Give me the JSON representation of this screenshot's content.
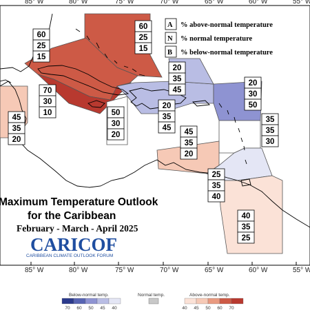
{
  "title_line1": "Maximum Temperature Outlook",
  "title_line2": "for the Caribbean",
  "period": "February - March - April 2025",
  "logo": {
    "text": "CARICOF",
    "subtitle": "CARIBBEAN CLIMATE OUTLOOK FORUM"
  },
  "key": [
    {
      "letter": "A",
      "label": "% above-normal temperature"
    },
    {
      "letter": "N",
      "label": "% normal temperature"
    },
    {
      "letter": "B",
      "label": "% below-normal temperature"
    }
  ],
  "longitudes": [
    "85° W",
    "80° W",
    "75° W",
    "70° W",
    "65° W",
    "60° W",
    "55° W"
  ],
  "regions": [
    {
      "name": "bahamas",
      "above": "60",
      "normal": "25",
      "below": "15",
      "color": "#cd5a46"
    },
    {
      "name": "cuba",
      "above": "60",
      "normal": "25",
      "below": "15",
      "color": "#cd5a46"
    },
    {
      "name": "cayman-jamaica",
      "above": "70",
      "normal": "30",
      "below": "10",
      "color": "#b8392f"
    },
    {
      "name": "belize",
      "above": "45",
      "normal": "35",
      "below": "20",
      "color": "#f6c9b6"
    },
    {
      "name": "hispaniola-west",
      "above": "50",
      "normal": "30",
      "below": "20",
      "color": "#ffffff"
    },
    {
      "name": "hispaniola",
      "above": "20",
      "normal": "35",
      "below": "45",
      "color": "#b9bde4"
    },
    {
      "name": "turks-caicos",
      "above": "20",
      "normal": "35",
      "below": "45",
      "color": "#b9bde4"
    },
    {
      "name": "leeward-north",
      "above": "20",
      "normal": "30",
      "below": "50",
      "color": "#8e93d2"
    },
    {
      "name": "leeward-south",
      "above": "35",
      "normal": "35",
      "below": "30",
      "color": "#ffffff"
    },
    {
      "name": "abc-islands",
      "above": "45",
      "normal": "35",
      "below": "20",
      "color": "#f6c9b6"
    },
    {
      "name": "windward",
      "above": "25",
      "normal": "35",
      "below": "40",
      "color": "#e4e6f5"
    },
    {
      "name": "guianas",
      "above": "40",
      "normal": "35",
      "below": "25",
      "color": "#fbe2d7"
    }
  ],
  "colorbar": {
    "below_label": "Below-normal temp.",
    "normal_label": "Normal temp.",
    "above_label": "Above-normal temp.",
    "below_ticks": [
      "70",
      "60",
      "50",
      "45",
      "40"
    ],
    "above_ticks": [
      "40",
      "45",
      "50",
      "60",
      "70"
    ],
    "below_colors": [
      "#2b3a8c",
      "#5764b3",
      "#8e93d2",
      "#b9bde4",
      "#e4e6f5"
    ],
    "normal_color": "#c8c8c8",
    "above_colors": [
      "#fbe2d7",
      "#f6c9b6",
      "#e99a80",
      "#cd5a46",
      "#b8392f"
    ]
  }
}
